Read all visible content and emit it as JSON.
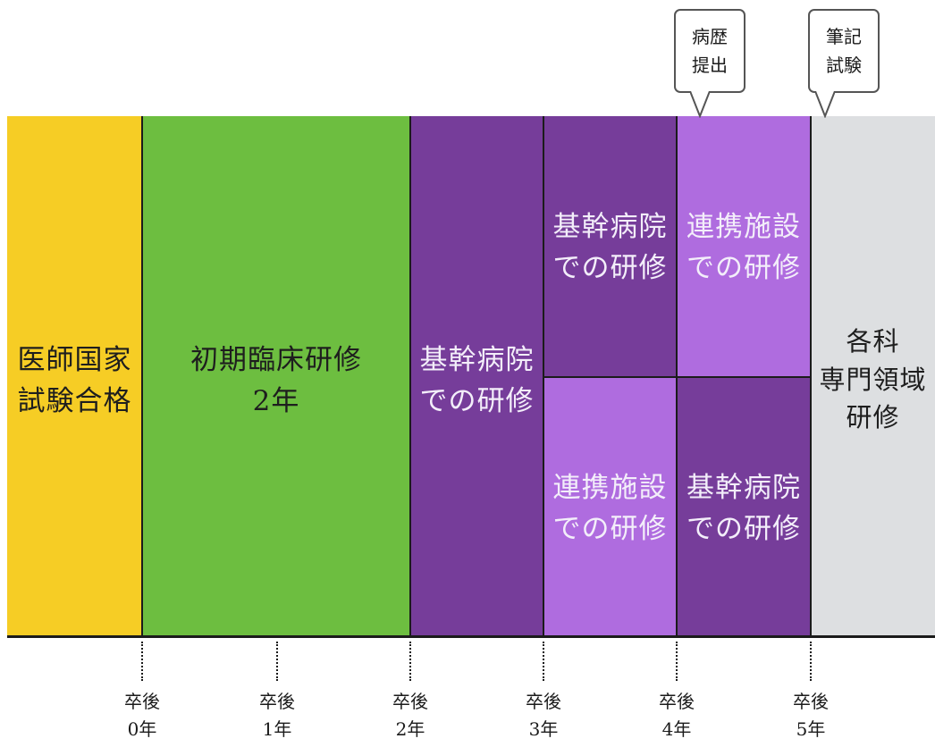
{
  "colors": {
    "yellow": "#f6cd25",
    "green": "#6dbe40",
    "dark_purple": "#763d9a",
    "light_purple": "#af6cdf",
    "gray": "#dddfe1"
  },
  "stages": {
    "exam": "医師国家\n試験合格",
    "initial": "初期臨床研修\n2年",
    "core_year3": "基幹病院\nでの研修",
    "year4_top": "基幹病院\nでの研修",
    "year4_bottom": "連携施設\nでの研修",
    "year5_top": "連携施設\nでの研修",
    "year5_bottom": "基幹病院\nでの研修",
    "specialty": "各科\n専門領域\n研修"
  },
  "callouts": {
    "case_report": "病歴\n提出",
    "written_exam": "筆記\n試験"
  },
  "ticks": [
    "卒後\n0年",
    "卒後\n1年",
    "卒後\n2年",
    "卒後\n3年",
    "卒後\n4年",
    "卒後\n5年"
  ]
}
